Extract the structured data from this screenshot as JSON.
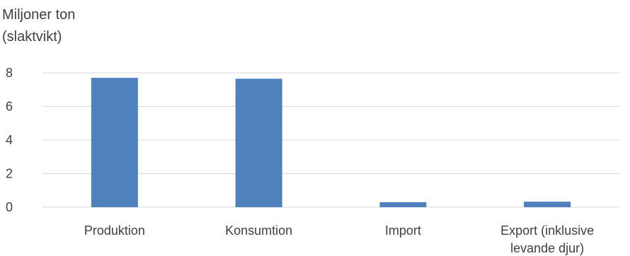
{
  "chart_data": {
    "type": "bar",
    "ylabel": [
      "Miljoner ton",
      "(slaktvikt)"
    ],
    "categories": [
      [
        "Produktion"
      ],
      [
        "Konsumtion"
      ],
      [
        "Import"
      ],
      [
        "Export (inklusive",
        "levande djur)"
      ]
    ],
    "values": [
      7.7,
      7.65,
      0.3,
      0.33
    ],
    "yticks": [
      0,
      2,
      4,
      6,
      8
    ],
    "ylim": [
      0,
      8
    ],
    "grid": true,
    "bar_color": "#4f81bd"
  }
}
